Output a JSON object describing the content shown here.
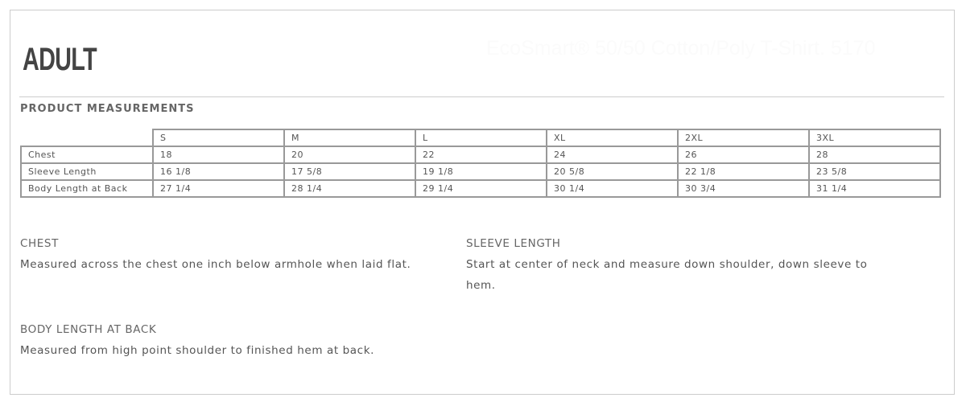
{
  "header": {
    "title": "ADULT",
    "watermark": "EcoSmart® 50/50 Cotton/Poly T-Shirt. 5170"
  },
  "section_title": "PRODUCT MEASUREMENTS",
  "table": {
    "sizes": [
      "S",
      "M",
      "L",
      "XL",
      "2XL",
      "3XL"
    ],
    "rows": [
      {
        "label": "Chest",
        "values": [
          "18",
          "20",
          "22",
          "24",
          "26",
          "28"
        ]
      },
      {
        "label": "Sleeve Length",
        "values": [
          "16 1/8",
          "17 5/8",
          "19 1/8",
          "20 5/8",
          "22 1/8",
          "23 5/8"
        ]
      },
      {
        "label": "Body Length at Back",
        "values": [
          "27 1/4",
          "28 1/4",
          "29 1/4",
          "30 1/4",
          "30 3/4",
          "31 1/4"
        ]
      }
    ]
  },
  "definitions": [
    {
      "title": "CHEST",
      "text": "Measured across the chest one inch below armhole when laid flat."
    },
    {
      "title": "SLEEVE LENGTH",
      "text": "Start at center of neck and measure down shoulder, down sleeve to hem."
    },
    {
      "title": "BODY LENGTH AT BACK",
      "text": "Measured from high point shoulder to finished hem at back."
    }
  ]
}
